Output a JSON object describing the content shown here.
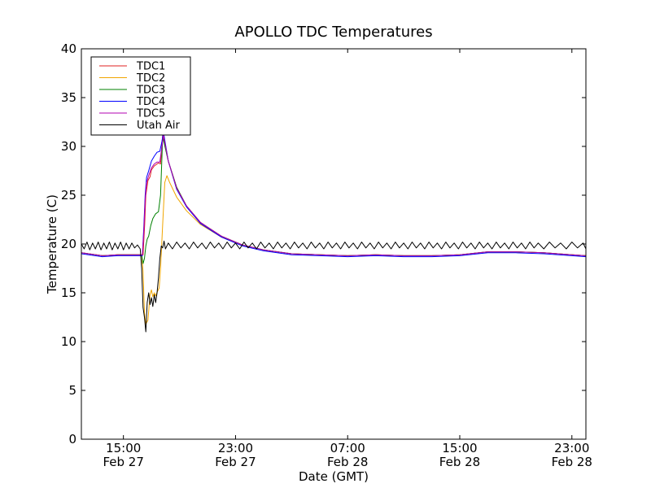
{
  "chart_data": {
    "type": "line",
    "title": "APOLLO TDC Temperatures",
    "xlabel": "Date (GMT)",
    "ylabel": "Temperature (C)",
    "xlim": [
      12.0,
      48.0
    ],
    "ylim": [
      0,
      40
    ],
    "yticks": [
      0,
      5,
      10,
      15,
      20,
      25,
      30,
      35,
      40
    ],
    "xticks": [
      {
        "x": 15,
        "time": "15:00",
        "date": "Feb 27"
      },
      {
        "x": 23,
        "time": "23:00",
        "date": "Feb 27"
      },
      {
        "x": 31,
        "time": "07:00",
        "date": "Feb 28"
      },
      {
        "x": 39,
        "time": "15:00",
        "date": "Feb 28"
      },
      {
        "x": 47,
        "time": "23:00",
        "date": "Feb 28"
      }
    ],
    "x_units": "hours since Feb 27 00:00 GMT",
    "legend_position": "top-left",
    "series": [
      {
        "name": "TDC1",
        "color": "#e02020",
        "x": [
          12.0,
          13.5,
          14.6,
          16.4,
          16.52,
          16.6,
          16.75,
          16.9,
          17.0,
          17.2,
          17.5,
          17.65,
          17.8,
          18.2,
          18.8,
          19.5,
          20.5,
          22.0,
          23.5,
          25.0,
          27.0,
          29.0,
          31.0,
          33.0,
          35.0,
          37.0,
          39.0,
          41.0,
          43.0,
          45.0,
          47.0,
          48.0
        ],
        "y": [
          19.1,
          18.8,
          18.9,
          18.9,
          22.0,
          25.0,
          26.5,
          26.9,
          27.6,
          28.0,
          28.3,
          28.2,
          31.2,
          28.5,
          25.8,
          23.9,
          22.2,
          20.8,
          19.9,
          19.4,
          19.0,
          18.9,
          18.8,
          18.9,
          18.8,
          18.8,
          18.9,
          19.2,
          19.2,
          19.1,
          18.9,
          18.8
        ]
      },
      {
        "name": "TDC2",
        "color": "#f0a500",
        "x": [
          12.0,
          13.5,
          14.6,
          16.3,
          16.4,
          16.5,
          16.6,
          16.75,
          16.9,
          17.0,
          17.1,
          17.2,
          17.3,
          17.45,
          17.55,
          17.65,
          17.8,
          17.95,
          18.1,
          18.3,
          18.8,
          19.5,
          20.5,
          22.0,
          23.5,
          25.0,
          27.0,
          29.0,
          31.0,
          33.0,
          35.0,
          37.0,
          39.0,
          41.0,
          43.0,
          45.0,
          47.0,
          48.0
        ],
        "y": [
          19.1,
          18.8,
          18.9,
          18.9,
          17.2,
          13.0,
          11.8,
          12.2,
          14.8,
          15.3,
          14.6,
          15.0,
          14.7,
          15.2,
          15.5,
          17.5,
          22.0,
          26.3,
          27.0,
          26.3,
          24.8,
          23.4,
          22.0,
          20.7,
          19.9,
          19.4,
          19.0,
          18.9,
          18.8,
          18.9,
          18.8,
          18.8,
          18.9,
          19.2,
          19.2,
          19.1,
          18.9,
          18.8
        ]
      },
      {
        "name": "TDC3",
        "color": "#008000",
        "x": [
          12.0,
          13.5,
          14.6,
          16.3,
          16.4,
          16.5,
          16.6,
          16.7,
          16.8,
          16.95,
          17.1,
          17.3,
          17.5,
          17.65,
          17.8,
          18.2,
          18.8,
          19.5,
          20.5,
          22.0,
          23.5,
          25.0,
          27.0,
          29.0,
          31.0,
          33.0,
          35.0,
          37.0,
          39.0,
          41.0,
          43.0,
          45.0,
          47.0,
          48.0
        ],
        "y": [
          19.1,
          18.8,
          18.9,
          18.9,
          18.0,
          18.5,
          19.8,
          20.5,
          20.8,
          21.9,
          22.6,
          23.1,
          23.3,
          25.0,
          31.0,
          28.5,
          25.8,
          23.9,
          22.2,
          20.8,
          19.9,
          19.4,
          19.0,
          18.9,
          18.8,
          18.9,
          18.8,
          18.8,
          18.9,
          19.2,
          19.2,
          19.1,
          18.9,
          18.8
        ]
      },
      {
        "name": "TDC4",
        "color": "#0000ff",
        "x": [
          12.0,
          13.5,
          14.6,
          16.35,
          16.45,
          16.55,
          16.65,
          16.8,
          17.0,
          17.2,
          17.4,
          17.6,
          17.75,
          17.85,
          18.2,
          18.8,
          19.5,
          20.5,
          22.0,
          23.5,
          25.0,
          27.0,
          29.0,
          31.0,
          33.0,
          35.0,
          37.0,
          39.0,
          41.0,
          43.0,
          45.0,
          47.0,
          48.0
        ],
        "y": [
          19.0,
          18.7,
          18.8,
          18.8,
          21.5,
          25.0,
          26.8,
          27.5,
          28.5,
          29.0,
          29.4,
          29.5,
          30.5,
          31.5,
          28.5,
          25.6,
          23.8,
          22.1,
          20.7,
          19.8,
          19.3,
          18.9,
          18.8,
          18.7,
          18.8,
          18.7,
          18.7,
          18.8,
          19.1,
          19.1,
          19.0,
          18.8,
          18.7
        ]
      },
      {
        "name": "TDC5",
        "color": "#b000b0",
        "x": [
          12.0,
          13.5,
          14.6,
          16.35,
          16.45,
          16.55,
          16.65,
          16.8,
          17.0,
          17.2,
          17.4,
          17.6,
          17.75,
          17.85,
          18.2,
          18.8,
          19.5,
          20.5,
          22.0,
          23.5,
          25.0,
          27.0,
          29.0,
          31.0,
          33.0,
          35.0,
          37.0,
          39.0,
          41.0,
          43.0,
          45.0,
          47.0,
          48.0
        ],
        "y": [
          19.1,
          18.8,
          18.9,
          18.9,
          21.0,
          24.5,
          26.3,
          27.0,
          27.8,
          28.2,
          28.4,
          28.4,
          30.0,
          31.2,
          28.5,
          25.7,
          23.9,
          22.2,
          20.8,
          19.9,
          19.4,
          19.0,
          18.9,
          18.8,
          18.9,
          18.8,
          18.8,
          18.9,
          19.2,
          19.2,
          19.1,
          18.9,
          18.8
        ]
      },
      {
        "name": "Utah Air",
        "color": "#000000",
        "x": [
          12.0,
          12.2,
          12.4,
          12.6,
          12.8,
          13.0,
          13.2,
          13.4,
          13.6,
          13.8,
          14.0,
          14.2,
          14.4,
          14.6,
          14.8,
          15.0,
          15.2,
          15.4,
          15.6,
          15.8,
          16.0,
          16.2,
          16.3,
          16.4,
          16.5,
          16.6,
          16.7,
          16.8,
          16.9,
          17.0,
          17.1,
          17.2,
          17.3,
          17.4,
          17.5,
          17.6,
          17.7,
          17.8,
          17.9,
          18.0,
          18.2,
          18.5,
          18.8,
          19.1,
          19.4,
          19.7,
          20.0,
          20.3,
          20.6,
          20.9,
          21.2,
          21.5,
          21.8,
          22.1,
          22.4,
          22.7,
          23.0,
          23.3,
          23.6,
          23.9,
          24.2,
          24.5,
          24.8,
          25.1,
          25.4,
          25.7,
          26.0,
          26.3,
          26.6,
          26.9,
          27.2,
          27.5,
          27.8,
          28.1,
          28.4,
          28.7,
          29.0,
          29.3,
          29.6,
          29.9,
          30.2,
          30.5,
          30.8,
          31.1,
          31.4,
          31.7,
          32.0,
          32.3,
          32.6,
          32.9,
          33.2,
          33.5,
          33.8,
          34.1,
          34.4,
          34.7,
          35.0,
          35.3,
          35.6,
          35.9,
          36.2,
          36.5,
          36.8,
          37.1,
          37.4,
          37.7,
          38.0,
          38.3,
          38.6,
          38.9,
          39.2,
          39.5,
          39.8,
          40.1,
          40.4,
          40.7,
          41.0,
          41.3,
          41.6,
          41.9,
          42.2,
          42.5,
          42.8,
          43.1,
          43.4,
          43.7,
          44.0,
          44.3,
          44.6,
          45.0,
          45.4,
          45.8,
          46.2,
          46.6,
          47.0,
          47.4,
          47.8,
          48.0
        ],
        "y": [
          20.0,
          19.5,
          20.2,
          19.4,
          20.1,
          19.5,
          20.2,
          19.4,
          20.1,
          19.5,
          20.2,
          19.4,
          20.1,
          19.5,
          20.2,
          19.4,
          20.1,
          19.5,
          20.1,
          19.6,
          19.9,
          19.5,
          17.5,
          13.5,
          12.5,
          11.0,
          14.0,
          15.0,
          13.8,
          14.5,
          13.6,
          14.8,
          14.0,
          15.0,
          16.5,
          18.5,
          19.8,
          19.6,
          20.3,
          19.5,
          20.1,
          19.5,
          20.2,
          19.6,
          20.1,
          19.5,
          20.2,
          19.6,
          20.1,
          19.5,
          20.2,
          19.6,
          20.1,
          19.5,
          20.2,
          19.6,
          20.1,
          19.5,
          20.2,
          19.6,
          20.1,
          19.5,
          20.2,
          19.6,
          20.1,
          19.5,
          20.2,
          19.6,
          20.1,
          19.5,
          20.2,
          19.6,
          20.1,
          19.5,
          20.2,
          19.6,
          20.1,
          19.5,
          20.2,
          19.6,
          20.1,
          19.5,
          20.2,
          19.6,
          20.1,
          19.5,
          20.2,
          19.6,
          20.1,
          19.5,
          20.2,
          19.6,
          20.1,
          19.5,
          20.2,
          19.6,
          20.1,
          19.5,
          20.2,
          19.6,
          20.1,
          19.5,
          20.2,
          19.6,
          20.1,
          19.5,
          20.2,
          19.6,
          20.1,
          19.5,
          20.2,
          19.6,
          20.1,
          19.5,
          20.2,
          19.6,
          20.1,
          19.5,
          20.2,
          19.6,
          20.1,
          19.5,
          20.2,
          19.6,
          20.1,
          19.5,
          20.2,
          19.6,
          20.1,
          19.5,
          20.2,
          19.6,
          20.1,
          19.5,
          20.2,
          19.6,
          20.1,
          19.5
        ]
      }
    ]
  }
}
